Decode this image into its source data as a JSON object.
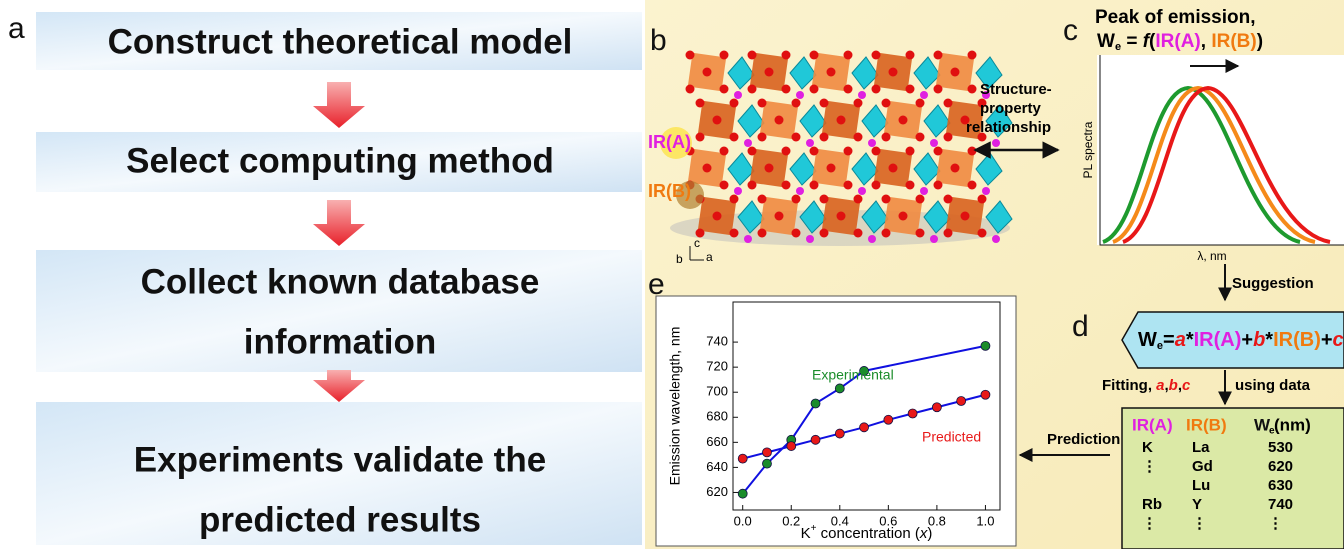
{
  "panel_labels": [
    "a",
    "b",
    "c",
    "d",
    "e"
  ],
  "steps": [
    [
      "Construct theoretical  model"
    ],
    [
      "Select computing method"
    ],
    [
      "Collect known database",
      "information"
    ],
    [
      "Experiments validate the",
      "predicted results"
    ]
  ],
  "structure": {
    "ion_a": "IR(A)",
    "ion_b": "IR(B)",
    "axes": [
      "c",
      "b",
      "a"
    ],
    "relation": [
      "Structure-",
      "property",
      "relationship"
    ]
  },
  "spectra": {
    "title": "Peak of emission,",
    "formula": [
      "W",
      "e",
      " = ",
      "f",
      "(",
      "IR(A)",
      ", ",
      "IR(B)",
      ")"
    ],
    "y_label": "PL spectra",
    "x_label": "λ, nm",
    "arrow_label": "Suggestion"
  },
  "model": {
    "equation": [
      "W",
      "e",
      "=",
      "a",
      "*",
      "IR(A)",
      "+",
      "b",
      "*",
      "IR(B)",
      "+",
      "c"
    ],
    "fitting": [
      "Fitting, ",
      "a",
      ",",
      "b",
      ",",
      "c"
    ],
    "using": "using data",
    "arrow_label": "Prediction"
  },
  "table": {
    "header": [
      "IR(A)",
      "IR(B)",
      "W"
    ],
    "header_sub": "e",
    "header_unit": " (nm)",
    "rows": [
      {
        "a": "K",
        "b": "La",
        "w": 530
      },
      {
        "a": "⋮",
        "b": "Gd",
        "w": 620
      },
      {
        "b": "Lu",
        "w": 630
      },
      {
        "a": "Rb",
        "b": "Y",
        "w": 740
      },
      {
        "a": "⋮",
        "b": "⋮",
        "w": "⋮"
      }
    ]
  },
  "chart_data": {
    "type": "scatter",
    "y_label": "Emission wavelength, nm",
    "x_label": [
      "K",
      "+",
      " concentration (",
      "x",
      ")"
    ],
    "xlim": [
      -0.04,
      1.06
    ],
    "ylim": [
      606,
      772
    ],
    "xticks": [
      {
        "value": 0,
        "label": "0.0"
      },
      0.2,
      0.4,
      0.6,
      0.8,
      {
        "value": 1,
        "label": "1.0"
      }
    ],
    "yticks": [
      620,
      640,
      660,
      680,
      700,
      720,
      740
    ],
    "fit_color": "#1010e0",
    "series": [
      {
        "name": "Experimental",
        "color": "#1a8c2a",
        "x": [
          0,
          0.1,
          0.2,
          0.3,
          0.4,
          0.5,
          1.0
        ],
        "values": [
          619,
          643,
          662,
          691,
          703,
          717,
          737
        ]
      },
      {
        "name": "Predicted",
        "color": "#e81818",
        "x": [
          0,
          0.1,
          0.2,
          0.3,
          0.4,
          0.5,
          0.6,
          0.7,
          0.8,
          0.9,
          1.0
        ],
        "values": [
          647,
          652,
          657,
          662,
          667,
          672,
          678,
          683,
          688,
          693,
          698
        ]
      }
    ]
  }
}
